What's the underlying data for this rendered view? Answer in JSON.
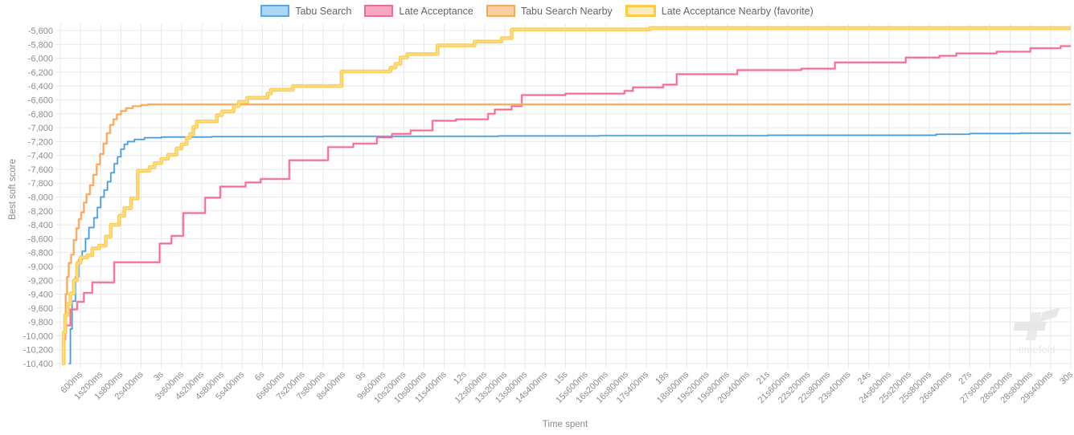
{
  "legend": {
    "items": [
      {
        "label": "Tabu Search",
        "fill": "#ABD6F5",
        "border": "#5AA7E8",
        "thick": false
      },
      {
        "label": "Late Acceptance",
        "fill": "#F8A7C0",
        "border": "#F06A95",
        "thick": false
      },
      {
        "label": "Tabu Search Nearby",
        "fill": "#FBCF9B",
        "border": "#F5A95E",
        "thick": false
      },
      {
        "label": "Late Acceptance Nearby (favorite)",
        "fill": "#FCEBC3",
        "border": "#FACB45",
        "thick": true
      }
    ]
  },
  "axes": {
    "y_ticks": [
      "-5,600",
      "-5,800",
      "-6,000",
      "-6,200",
      "-6,400",
      "-6,600",
      "-6,800",
      "-7,000",
      "-7,200",
      "-7,400",
      "-7,600",
      "-7,800",
      "-8,000",
      "-8,200",
      "-8,400",
      "-8,600",
      "-8,800",
      "-9,000",
      "-9,200",
      "-9,400",
      "-9,600",
      "-9,800",
      "-10,000",
      "-10,200",
      "-10,400"
    ],
    "x_ticks": [
      "600ms",
      "1s200ms",
      "1s800ms",
      "2s400ms",
      "3s",
      "3s600ms",
      "4s200ms",
      "4s800ms",
      "5s400ms",
      "6s",
      "6s600ms",
      "7s200ms",
      "7s800ms",
      "8s400ms",
      "9s",
      "9s600ms",
      "10s200ms",
      "10s800ms",
      "11s400ms",
      "12s",
      "12s600ms",
      "13s200ms",
      "13s800ms",
      "14s400ms",
      "15s",
      "15s600ms",
      "16s200ms",
      "16s800ms",
      "17s400ms",
      "18s",
      "18s600ms",
      "19s200ms",
      "19s800ms",
      "20s400ms",
      "21s",
      "21s600ms",
      "22s200ms",
      "22s800ms",
      "23s400ms",
      "24s",
      "24s600ms",
      "25s200ms",
      "25s800ms",
      "26s400ms",
      "27s",
      "27s600ms",
      "28s200ms",
      "28s800ms",
      "29s400ms",
      "30s"
    ]
  },
  "watermark": {
    "text": "timefold"
  },
  "chart_data": {
    "type": "line",
    "title": "",
    "xlabel": "Time spent",
    "ylabel": "Best soft score",
    "x_unit": "seconds",
    "xlim": [
      0,
      30
    ],
    "ylim": [
      -10400,
      -5600
    ],
    "grid": true,
    "legend_position": "top",
    "step": true,
    "series": [
      {
        "name": "Tabu Search",
        "color": "#4A9BD5",
        "width": 1.5,
        "halo_color": "rgba(144,202,249,0.45)",
        "halo_width": 2.8,
        "points": [
          [
            0.25,
            -10400
          ],
          [
            0.3,
            -9900
          ],
          [
            0.35,
            -9500
          ],
          [
            0.45,
            -9150
          ],
          [
            0.55,
            -8900
          ],
          [
            0.65,
            -8780
          ],
          [
            0.75,
            -8600
          ],
          [
            0.85,
            -8440
          ],
          [
            1.0,
            -8300
          ],
          [
            1.1,
            -8150
          ],
          [
            1.2,
            -8000
          ],
          [
            1.3,
            -7900
          ],
          [
            1.4,
            -7780
          ],
          [
            1.5,
            -7650
          ],
          [
            1.6,
            -7520
          ],
          [
            1.7,
            -7420
          ],
          [
            1.8,
            -7310
          ],
          [
            1.9,
            -7240
          ],
          [
            2.0,
            -7200
          ],
          [
            2.2,
            -7170
          ],
          [
            2.5,
            -7145
          ],
          [
            3.0,
            -7135
          ],
          [
            4.5,
            -7130
          ],
          [
            7.8,
            -7125
          ],
          [
            13.0,
            -7120
          ],
          [
            16.0,
            -7115
          ],
          [
            21.0,
            -7110
          ],
          [
            26.0,
            -7095
          ],
          [
            27.0,
            -7085
          ],
          [
            28.5,
            -7080
          ],
          [
            30,
            -7080
          ]
        ]
      },
      {
        "name": "Late Acceptance",
        "color": "#EE6A94",
        "width": 1.6,
        "halo_color": "rgba(247,141,167,0.5)",
        "halo_width": 3.2,
        "points": [
          [
            0.05,
            -10350
          ],
          [
            0.1,
            -10050
          ],
          [
            0.15,
            -9850
          ],
          [
            0.3,
            -9620
          ],
          [
            0.5,
            -9510
          ],
          [
            0.7,
            -9380
          ],
          [
            0.95,
            -9230
          ],
          [
            1.6,
            -8940
          ],
          [
            2.95,
            -8670
          ],
          [
            3.3,
            -8560
          ],
          [
            3.65,
            -8230
          ],
          [
            4.3,
            -8010
          ],
          [
            4.75,
            -7850
          ],
          [
            5.5,
            -7790
          ],
          [
            5.95,
            -7740
          ],
          [
            6.8,
            -7470
          ],
          [
            7.95,
            -7280
          ],
          [
            8.7,
            -7230
          ],
          [
            9.4,
            -7140
          ],
          [
            9.85,
            -7090
          ],
          [
            10.4,
            -7040
          ],
          [
            11.05,
            -6900
          ],
          [
            11.75,
            -6880
          ],
          [
            12.7,
            -6800
          ],
          [
            12.9,
            -6740
          ],
          [
            13.4,
            -6690
          ],
          [
            13.7,
            -6530
          ],
          [
            15.0,
            -6510
          ],
          [
            16.75,
            -6470
          ],
          [
            17.0,
            -6420
          ],
          [
            17.9,
            -6380
          ],
          [
            18.3,
            -6230
          ],
          [
            20.1,
            -6170
          ],
          [
            22.0,
            -6150
          ],
          [
            23.0,
            -6060
          ],
          [
            25.1,
            -5990
          ],
          [
            26.1,
            -5965
          ],
          [
            26.6,
            -5930
          ],
          [
            27.8,
            -5905
          ],
          [
            28.8,
            -5855
          ],
          [
            29.7,
            -5825
          ],
          [
            30,
            -5825
          ]
        ]
      },
      {
        "name": "Tabu Search Nearby",
        "color": "#F5A55B",
        "width": 1.6,
        "halo_color": "rgba(252,191,130,0.55)",
        "halo_width": 3.2,
        "points": [
          [
            0.05,
            -10350
          ],
          [
            0.08,
            -10050
          ],
          [
            0.12,
            -9700
          ],
          [
            0.16,
            -9400
          ],
          [
            0.2,
            -9150
          ],
          [
            0.25,
            -8950
          ],
          [
            0.32,
            -8830
          ],
          [
            0.4,
            -8620
          ],
          [
            0.48,
            -8450
          ],
          [
            0.55,
            -8320
          ],
          [
            0.62,
            -8220
          ],
          [
            0.7,
            -8080
          ],
          [
            0.78,
            -7960
          ],
          [
            0.88,
            -7830
          ],
          [
            0.98,
            -7680
          ],
          [
            1.08,
            -7530
          ],
          [
            1.18,
            -7380
          ],
          [
            1.28,
            -7230
          ],
          [
            1.38,
            -7080
          ],
          [
            1.48,
            -6960
          ],
          [
            1.58,
            -6880
          ],
          [
            1.68,
            -6810
          ],
          [
            1.8,
            -6760
          ],
          [
            1.95,
            -6720
          ],
          [
            2.15,
            -6690
          ],
          [
            2.4,
            -6675
          ],
          [
            2.6,
            -6665
          ],
          [
            30,
            -6665
          ]
        ]
      },
      {
        "name": "Late Acceptance Nearby (favorite)",
        "color": "#FBCE55",
        "width": 4.6,
        "inner_color": "#FDE19B",
        "inner_width": 1.6,
        "points": [
          [
            0.05,
            -10400
          ],
          [
            0.1,
            -9950
          ],
          [
            0.15,
            -9700
          ],
          [
            0.22,
            -9540
          ],
          [
            0.3,
            -9390
          ],
          [
            0.4,
            -9200
          ],
          [
            0.5,
            -8950
          ],
          [
            0.6,
            -8870
          ],
          [
            0.8,
            -8840
          ],
          [
            0.95,
            -8740
          ],
          [
            1.15,
            -8700
          ],
          [
            1.35,
            -8570
          ],
          [
            1.5,
            -8400
          ],
          [
            1.75,
            -8270
          ],
          [
            1.9,
            -8160
          ],
          [
            2.1,
            -8020
          ],
          [
            2.3,
            -7620
          ],
          [
            2.65,
            -7570
          ],
          [
            2.8,
            -7510
          ],
          [
            3.0,
            -7450
          ],
          [
            3.2,
            -7390
          ],
          [
            3.45,
            -7300
          ],
          [
            3.6,
            -7240
          ],
          [
            3.75,
            -7150
          ],
          [
            3.85,
            -7090
          ],
          [
            3.95,
            -6990
          ],
          [
            4.05,
            -6910
          ],
          [
            4.65,
            -6820
          ],
          [
            4.8,
            -6765
          ],
          [
            5.15,
            -6690
          ],
          [
            5.3,
            -6630
          ],
          [
            5.55,
            -6570
          ],
          [
            6.15,
            -6510
          ],
          [
            6.25,
            -6455
          ],
          [
            6.9,
            -6400
          ],
          [
            8.35,
            -6190
          ],
          [
            9.8,
            -6135
          ],
          [
            9.95,
            -6080
          ],
          [
            10.1,
            -5990
          ],
          [
            10.3,
            -5940
          ],
          [
            11.2,
            -5815
          ],
          [
            12.3,
            -5760
          ],
          [
            13.1,
            -5710
          ],
          [
            13.4,
            -5585
          ],
          [
            17.5,
            -5565
          ],
          [
            30,
            -5565
          ]
        ]
      }
    ]
  }
}
